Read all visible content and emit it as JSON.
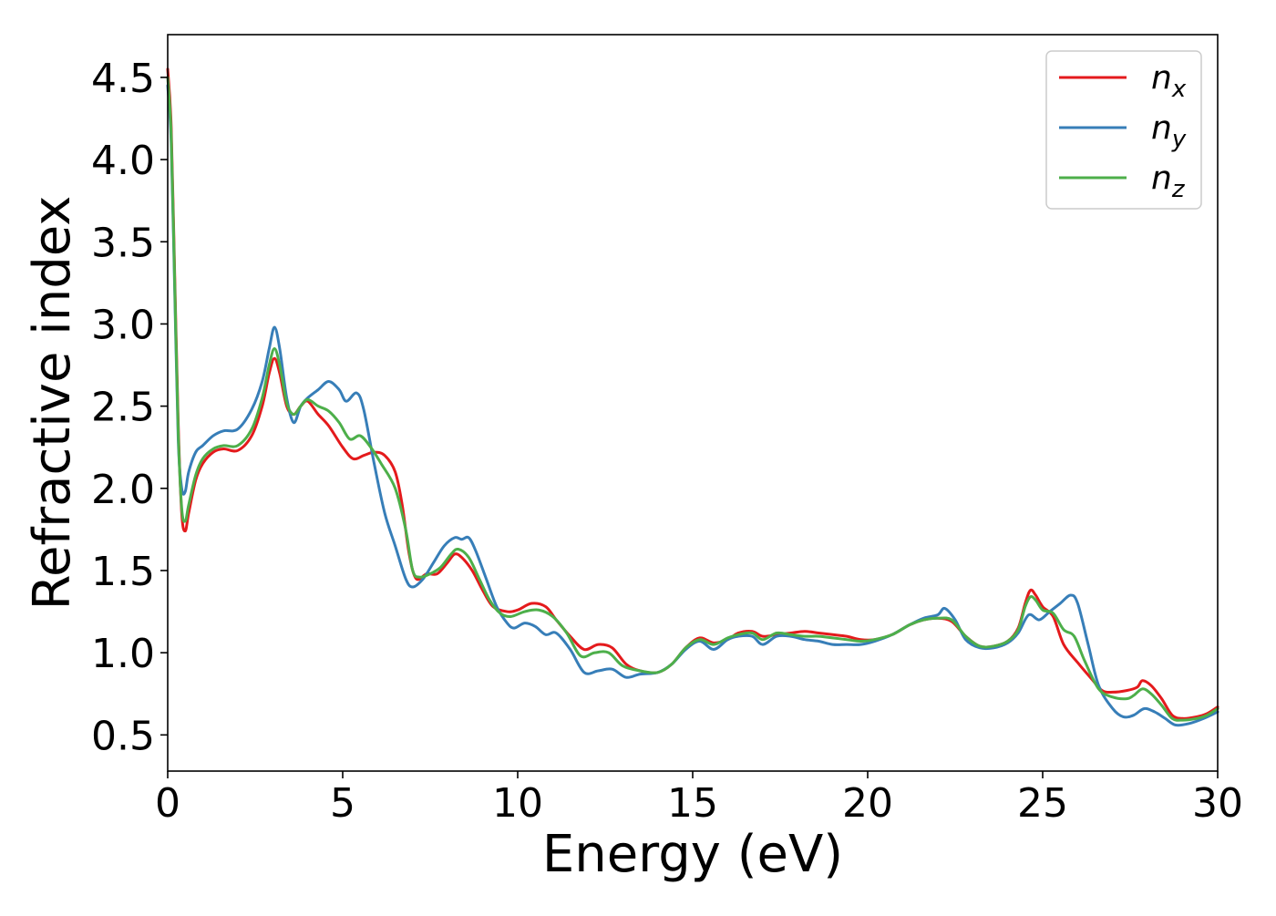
{
  "chart_data": {
    "type": "line",
    "xlabel": "Energy (eV)",
    "ylabel": "Refractive index",
    "xlim": [
      0,
      30
    ],
    "ylim": [
      0.28,
      4.76
    ],
    "xticks": [
      "0",
      "5",
      "10",
      "15",
      "20",
      "25",
      "30"
    ],
    "yticks": [
      "0.5",
      "1.0",
      "1.5",
      "2.0",
      "2.5",
      "3.0",
      "3.5",
      "4.0",
      "4.5"
    ],
    "grid": false,
    "legend_position": "top-right",
    "colors": {
      "nx": "#e41a1c",
      "ny": "#377eb8",
      "nz": "#4daf4a"
    },
    "series": [
      {
        "name": "n_x",
        "label_base": "n",
        "label_sub": "x",
        "color": "#e41a1c",
        "points": [
          [
            0,
            4.55
          ],
          [
            0.1,
            4.2
          ],
          [
            0.2,
            3.3
          ],
          [
            0.3,
            2.4
          ],
          [
            0.4,
            1.85
          ],
          [
            0.5,
            1.74
          ],
          [
            0.6,
            1.85
          ],
          [
            0.8,
            2.05
          ],
          [
            1.0,
            2.15
          ],
          [
            1.3,
            2.22
          ],
          [
            1.6,
            2.24
          ],
          [
            2.0,
            2.23
          ],
          [
            2.4,
            2.32
          ],
          [
            2.7,
            2.5
          ],
          [
            2.9,
            2.7
          ],
          [
            3.05,
            2.79
          ],
          [
            3.2,
            2.7
          ],
          [
            3.4,
            2.5
          ],
          [
            3.6,
            2.45
          ],
          [
            3.8,
            2.5
          ],
          [
            4.0,
            2.53
          ],
          [
            4.3,
            2.45
          ],
          [
            4.6,
            2.38
          ],
          [
            5.0,
            2.25
          ],
          [
            5.3,
            2.18
          ],
          [
            5.6,
            2.2
          ],
          [
            5.9,
            2.22
          ],
          [
            6.2,
            2.2
          ],
          [
            6.5,
            2.1
          ],
          [
            6.7,
            1.9
          ],
          [
            6.9,
            1.6
          ],
          [
            7.1,
            1.45
          ],
          [
            7.4,
            1.48
          ],
          [
            7.7,
            1.48
          ],
          [
            8.0,
            1.55
          ],
          [
            8.2,
            1.6
          ],
          [
            8.4,
            1.58
          ],
          [
            8.7,
            1.5
          ],
          [
            9.0,
            1.38
          ],
          [
            9.3,
            1.28
          ],
          [
            9.7,
            1.25
          ],
          [
            10.0,
            1.26
          ],
          [
            10.4,
            1.3
          ],
          [
            10.8,
            1.28
          ],
          [
            11.1,
            1.2
          ],
          [
            11.5,
            1.1
          ],
          [
            11.9,
            1.02
          ],
          [
            12.3,
            1.05
          ],
          [
            12.7,
            1.03
          ],
          [
            13.1,
            0.93
          ],
          [
            13.5,
            0.89
          ],
          [
            14.0,
            0.88
          ],
          [
            14.4,
            0.93
          ],
          [
            14.8,
            1.03
          ],
          [
            15.2,
            1.09
          ],
          [
            15.6,
            1.06
          ],
          [
            16.0,
            1.08
          ],
          [
            16.3,
            1.12
          ],
          [
            16.7,
            1.13
          ],
          [
            17.0,
            1.1
          ],
          [
            17.4,
            1.11
          ],
          [
            17.8,
            1.12
          ],
          [
            18.2,
            1.13
          ],
          [
            18.6,
            1.12
          ],
          [
            19.0,
            1.11
          ],
          [
            19.4,
            1.1
          ],
          [
            19.8,
            1.08
          ],
          [
            20.2,
            1.08
          ],
          [
            20.7,
            1.11
          ],
          [
            21.2,
            1.17
          ],
          [
            21.6,
            1.2
          ],
          [
            22.0,
            1.21
          ],
          [
            22.4,
            1.19
          ],
          [
            22.8,
            1.1
          ],
          [
            23.2,
            1.04
          ],
          [
            23.6,
            1.04
          ],
          [
            24.0,
            1.07
          ],
          [
            24.3,
            1.15
          ],
          [
            24.5,
            1.3
          ],
          [
            24.65,
            1.38
          ],
          [
            24.8,
            1.35
          ],
          [
            25.0,
            1.28
          ],
          [
            25.3,
            1.22
          ],
          [
            25.6,
            1.05
          ],
          [
            26.0,
            0.94
          ],
          [
            26.4,
            0.84
          ],
          [
            26.7,
            0.77
          ],
          [
            27.0,
            0.76
          ],
          [
            27.4,
            0.77
          ],
          [
            27.7,
            0.79
          ],
          [
            27.85,
            0.83
          ],
          [
            28.1,
            0.8
          ],
          [
            28.4,
            0.72
          ],
          [
            28.7,
            0.62
          ],
          [
            29.0,
            0.6
          ],
          [
            29.4,
            0.61
          ],
          [
            29.7,
            0.63
          ],
          [
            30,
            0.67
          ]
        ]
      },
      {
        "name": "n_y",
        "label_base": "n",
        "label_sub": "y",
        "color": "#377eb8",
        "points": [
          [
            0,
            4.45
          ],
          [
            0.1,
            4.1
          ],
          [
            0.2,
            3.2
          ],
          [
            0.3,
            2.3
          ],
          [
            0.4,
            2.0
          ],
          [
            0.5,
            1.98
          ],
          [
            0.6,
            2.1
          ],
          [
            0.8,
            2.22
          ],
          [
            1.0,
            2.26
          ],
          [
            1.3,
            2.32
          ],
          [
            1.6,
            2.35
          ],
          [
            2.0,
            2.36
          ],
          [
            2.4,
            2.48
          ],
          [
            2.7,
            2.65
          ],
          [
            2.9,
            2.85
          ],
          [
            3.05,
            2.98
          ],
          [
            3.2,
            2.85
          ],
          [
            3.4,
            2.55
          ],
          [
            3.6,
            2.4
          ],
          [
            3.8,
            2.5
          ],
          [
            4.0,
            2.55
          ],
          [
            4.3,
            2.6
          ],
          [
            4.6,
            2.65
          ],
          [
            4.9,
            2.6
          ],
          [
            5.1,
            2.53
          ],
          [
            5.4,
            2.58
          ],
          [
            5.6,
            2.48
          ],
          [
            5.9,
            2.15
          ],
          [
            6.2,
            1.85
          ],
          [
            6.5,
            1.65
          ],
          [
            6.8,
            1.45
          ],
          [
            7.0,
            1.4
          ],
          [
            7.3,
            1.45
          ],
          [
            7.6,
            1.55
          ],
          [
            7.9,
            1.65
          ],
          [
            8.2,
            1.7
          ],
          [
            8.4,
            1.69
          ],
          [
            8.6,
            1.7
          ],
          [
            8.8,
            1.62
          ],
          [
            9.1,
            1.45
          ],
          [
            9.4,
            1.28
          ],
          [
            9.7,
            1.18
          ],
          [
            9.9,
            1.15
          ],
          [
            10.2,
            1.18
          ],
          [
            10.5,
            1.16
          ],
          [
            10.8,
            1.11
          ],
          [
            11.1,
            1.12
          ],
          [
            11.5,
            1.02
          ],
          [
            11.9,
            0.88
          ],
          [
            12.3,
            0.89
          ],
          [
            12.7,
            0.9
          ],
          [
            13.1,
            0.85
          ],
          [
            13.5,
            0.87
          ],
          [
            14.0,
            0.88
          ],
          [
            14.4,
            0.93
          ],
          [
            14.8,
            1.02
          ],
          [
            15.2,
            1.07
          ],
          [
            15.6,
            1.02
          ],
          [
            16.0,
            1.08
          ],
          [
            16.3,
            1.1
          ],
          [
            16.7,
            1.1
          ],
          [
            17.0,
            1.05
          ],
          [
            17.4,
            1.1
          ],
          [
            17.8,
            1.1
          ],
          [
            18.2,
            1.08
          ],
          [
            18.6,
            1.07
          ],
          [
            19.0,
            1.05
          ],
          [
            19.4,
            1.05
          ],
          [
            19.8,
            1.05
          ],
          [
            20.2,
            1.07
          ],
          [
            20.7,
            1.11
          ],
          [
            21.2,
            1.17
          ],
          [
            21.6,
            1.21
          ],
          [
            22.0,
            1.23
          ],
          [
            22.2,
            1.27
          ],
          [
            22.5,
            1.2
          ],
          [
            22.8,
            1.08
          ],
          [
            23.2,
            1.03
          ],
          [
            23.6,
            1.03
          ],
          [
            24.0,
            1.06
          ],
          [
            24.3,
            1.12
          ],
          [
            24.6,
            1.23
          ],
          [
            24.9,
            1.2
          ],
          [
            25.2,
            1.25
          ],
          [
            25.5,
            1.3
          ],
          [
            25.8,
            1.35
          ],
          [
            26.0,
            1.3
          ],
          [
            26.3,
            1.05
          ],
          [
            26.6,
            0.8
          ],
          [
            27.0,
            0.66
          ],
          [
            27.3,
            0.61
          ],
          [
            27.6,
            0.62
          ],
          [
            27.9,
            0.66
          ],
          [
            28.2,
            0.64
          ],
          [
            28.5,
            0.6
          ],
          [
            28.8,
            0.56
          ],
          [
            29.2,
            0.57
          ],
          [
            29.6,
            0.6
          ],
          [
            30,
            0.64
          ]
        ]
      },
      {
        "name": "n_z",
        "label_base": "n",
        "label_sub": "z",
        "color": "#4daf4a",
        "points": [
          [
            0,
            4.5
          ],
          [
            0.1,
            4.15
          ],
          [
            0.2,
            3.25
          ],
          [
            0.3,
            2.35
          ],
          [
            0.4,
            1.88
          ],
          [
            0.5,
            1.8
          ],
          [
            0.6,
            1.9
          ],
          [
            0.8,
            2.08
          ],
          [
            1.0,
            2.18
          ],
          [
            1.3,
            2.24
          ],
          [
            1.6,
            2.26
          ],
          [
            2.0,
            2.26
          ],
          [
            2.4,
            2.36
          ],
          [
            2.7,
            2.55
          ],
          [
            2.9,
            2.75
          ],
          [
            3.05,
            2.85
          ],
          [
            3.2,
            2.75
          ],
          [
            3.4,
            2.52
          ],
          [
            3.6,
            2.45
          ],
          [
            3.8,
            2.5
          ],
          [
            4.0,
            2.54
          ],
          [
            4.3,
            2.5
          ],
          [
            4.6,
            2.47
          ],
          [
            4.9,
            2.4
          ],
          [
            5.2,
            2.3
          ],
          [
            5.5,
            2.32
          ],
          [
            5.8,
            2.25
          ],
          [
            6.1,
            2.15
          ],
          [
            6.5,
            2.0
          ],
          [
            6.8,
            1.75
          ],
          [
            7.0,
            1.5
          ],
          [
            7.2,
            1.46
          ],
          [
            7.5,
            1.48
          ],
          [
            7.8,
            1.52
          ],
          [
            8.1,
            1.6
          ],
          [
            8.3,
            1.63
          ],
          [
            8.6,
            1.58
          ],
          [
            8.9,
            1.45
          ],
          [
            9.2,
            1.32
          ],
          [
            9.5,
            1.24
          ],
          [
            9.8,
            1.22
          ],
          [
            10.2,
            1.25
          ],
          [
            10.6,
            1.26
          ],
          [
            11.0,
            1.22
          ],
          [
            11.4,
            1.12
          ],
          [
            11.8,
            0.98
          ],
          [
            12.2,
            1.0
          ],
          [
            12.6,
            1.0
          ],
          [
            13.0,
            0.92
          ],
          [
            13.5,
            0.89
          ],
          [
            14.0,
            0.88
          ],
          [
            14.4,
            0.93
          ],
          [
            14.8,
            1.03
          ],
          [
            15.2,
            1.08
          ],
          [
            15.6,
            1.05
          ],
          [
            16.0,
            1.09
          ],
          [
            16.3,
            1.11
          ],
          [
            16.7,
            1.12
          ],
          [
            17.0,
            1.08
          ],
          [
            17.4,
            1.12
          ],
          [
            17.8,
            1.11
          ],
          [
            18.2,
            1.1
          ],
          [
            18.6,
            1.1
          ],
          [
            19.0,
            1.09
          ],
          [
            19.4,
            1.08
          ],
          [
            19.8,
            1.07
          ],
          [
            20.2,
            1.08
          ],
          [
            20.7,
            1.11
          ],
          [
            21.2,
            1.17
          ],
          [
            21.6,
            1.2
          ],
          [
            22.0,
            1.21
          ],
          [
            22.4,
            1.2
          ],
          [
            22.8,
            1.1
          ],
          [
            23.2,
            1.04
          ],
          [
            23.6,
            1.04
          ],
          [
            24.0,
            1.07
          ],
          [
            24.3,
            1.14
          ],
          [
            24.5,
            1.28
          ],
          [
            24.65,
            1.34
          ],
          [
            24.8,
            1.32
          ],
          [
            25.0,
            1.26
          ],
          [
            25.3,
            1.24
          ],
          [
            25.6,
            1.14
          ],
          [
            25.9,
            1.1
          ],
          [
            26.2,
            0.95
          ],
          [
            26.6,
            0.78
          ],
          [
            27.0,
            0.73
          ],
          [
            27.4,
            0.72
          ],
          [
            27.6,
            0.74
          ],
          [
            27.85,
            0.78
          ],
          [
            28.1,
            0.75
          ],
          [
            28.4,
            0.68
          ],
          [
            28.7,
            0.6
          ],
          [
            29.0,
            0.59
          ],
          [
            29.4,
            0.6
          ],
          [
            29.7,
            0.62
          ],
          [
            30,
            0.66
          ]
        ]
      }
    ]
  }
}
